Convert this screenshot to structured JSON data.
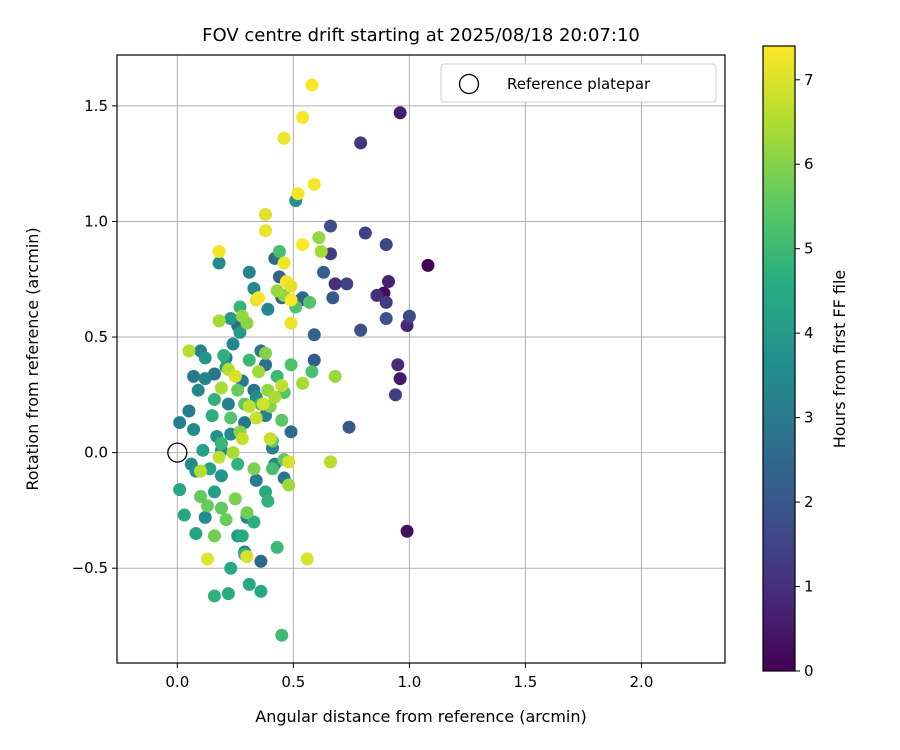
{
  "chart_data": {
    "type": "scatter",
    "title": "FOV centre drift starting at 2025/08/18 20:07:10",
    "xlabel": "Angular distance from reference (arcmin)",
    "ylabel": "Rotation from reference (arcmin)",
    "xlim": [
      -0.26,
      2.36
    ],
    "ylim": [
      -0.91,
      1.72
    ],
    "xticks": [
      0.0,
      0.5,
      1.0,
      1.5,
      2.0
    ],
    "xtick_labels": [
      "0.0",
      "0.5",
      "1.0",
      "1.5",
      "2.0"
    ],
    "yticks": [
      -0.5,
      0.0,
      0.5,
      1.0,
      1.5
    ],
    "ytick_labels": [
      "−0.5",
      "0.0",
      "0.5",
      "1.0",
      "1.5"
    ],
    "grid": true,
    "legend": {
      "placement": "top-right",
      "entries": [
        "Reference platepar"
      ]
    },
    "reference_point": {
      "x": 0.0,
      "y": 0.0,
      "label": "Reference platepar"
    },
    "colorbar": {
      "label": "Hours from first FF file",
      "range": [
        0,
        7.4
      ],
      "ticks": [
        0,
        1,
        2,
        3,
        4,
        5,
        6,
        7
      ],
      "tick_labels": [
        "0",
        "1",
        "2",
        "3",
        "4",
        "5",
        "6",
        "7"
      ],
      "colormap": "viridis"
    },
    "points": [
      [
        1.08,
        0.81,
        0.0
      ],
      [
        0.99,
        -0.34,
        0.3
      ],
      [
        0.96,
        1.47,
        0.6
      ],
      [
        0.89,
        0.69,
        0.2
      ],
      [
        0.96,
        0.32,
        0.5
      ],
      [
        0.91,
        0.74,
        0.7
      ],
      [
        0.99,
        0.55,
        0.8
      ],
      [
        0.95,
        0.38,
        0.9
      ],
      [
        0.86,
        0.68,
        1.0
      ],
      [
        0.79,
        1.34,
        1.2
      ],
      [
        0.9,
        0.65,
        1.3
      ],
      [
        0.94,
        0.25,
        1.4
      ],
      [
        0.81,
        0.95,
        1.5
      ],
      [
        0.9,
        0.9,
        1.6
      ],
      [
        1.0,
        0.59,
        1.7
      ],
      [
        0.68,
        0.73,
        1.0
      ],
      [
        0.66,
        0.86,
        1.3
      ],
      [
        0.73,
        0.73,
        1.5
      ],
      [
        0.66,
        0.98,
        1.8
      ],
      [
        0.79,
        0.53,
        1.9
      ],
      [
        0.9,
        0.58,
        1.9
      ],
      [
        0.74,
        0.11,
        2.0
      ],
      [
        0.67,
        0.67,
        2.1
      ],
      [
        0.59,
        0.4,
        2.2
      ],
      [
        0.63,
        0.78,
        2.3
      ],
      [
        0.53,
        0.66,
        2.2
      ],
      [
        0.59,
        0.51,
        2.4
      ],
      [
        0.54,
        0.67,
        2.5
      ],
      [
        0.49,
        0.09,
        2.6
      ],
      [
        0.45,
        0.67,
        2.5
      ],
      [
        0.42,
        0.84,
        2.6
      ],
      [
        0.44,
        0.76,
        2.4
      ],
      [
        0.36,
        -0.47,
        2.5
      ],
      [
        0.38,
        0.38,
        2.7
      ],
      [
        0.33,
        0.27,
        2.8
      ],
      [
        0.26,
        0.55,
        2.6
      ],
      [
        0.36,
        0.44,
        2.9
      ],
      [
        0.21,
        0.41,
        2.7
      ],
      [
        0.16,
        0.34,
        2.9
      ],
      [
        0.29,
        0.13,
        3.0
      ],
      [
        0.34,
        -0.12,
        3.1
      ],
      [
        0.41,
        0.02,
        3.2
      ],
      [
        0.46,
        -0.11,
        3.0
      ],
      [
        0.38,
        0.16,
        3.3
      ],
      [
        0.28,
        0.31,
        3.1
      ],
      [
        0.22,
        0.21,
        3.2
      ],
      [
        0.31,
        0.78,
        3.3
      ],
      [
        0.24,
        0.47,
        3.4
      ],
      [
        0.33,
        0.71,
        3.5
      ],
      [
        0.42,
        -0.05,
        3.4
      ],
      [
        0.34,
        0.24,
        3.6
      ],
      [
        0.23,
        0.08,
        3.5
      ],
      [
        0.19,
        0.01,
        3.7
      ],
      [
        0.12,
        -0.28,
        3.6
      ],
      [
        0.1,
        0.44,
        3.3
      ],
      [
        0.09,
        0.27,
        3.4
      ],
      [
        0.12,
        0.32,
        3.3
      ],
      [
        0.06,
        -0.05,
        3.5
      ],
      [
        0.01,
        0.13,
        3.2
      ],
      [
        0.07,
        0.1,
        3.6
      ],
      [
        0.05,
        0.18,
        3.1
      ],
      [
        0.07,
        0.33,
        3.0
      ],
      [
        0.08,
        -0.08,
        3.8
      ],
      [
        0.18,
        0.82,
        3.5
      ],
      [
        0.29,
        -0.43,
        3.2
      ],
      [
        0.3,
        -0.28,
        3.3
      ],
      [
        0.39,
        0.62,
        3.4
      ],
      [
        0.51,
        1.09,
        3.8
      ],
      [
        0.12,
        0.41,
        3.9
      ],
      [
        0.17,
        0.07,
        3.8
      ],
      [
        0.19,
        -0.1,
        3.9
      ],
      [
        0.23,
        0.58,
        4.0
      ],
      [
        0.27,
        0.52,
        4.0
      ],
      [
        0.26,
        -0.36,
        4.1
      ],
      [
        0.21,
        0.37,
        4.1
      ],
      [
        0.16,
        -0.17,
        4.2
      ],
      [
        0.11,
        0.01,
        4.2
      ],
      [
        0.14,
        -0.07,
        4.3
      ],
      [
        0.08,
        -0.35,
        4.3
      ],
      [
        0.03,
        -0.27,
        4.4
      ],
      [
        0.01,
        -0.16,
        4.4
      ],
      [
        0.23,
        -0.5,
        4.5
      ],
      [
        0.31,
        -0.57,
        4.5
      ],
      [
        0.36,
        -0.6,
        4.4
      ],
      [
        0.22,
        -0.61,
        4.6
      ],
      [
        0.16,
        -0.62,
        4.8
      ],
      [
        0.28,
        -0.36,
        4.6
      ],
      [
        0.33,
        -0.3,
        4.7
      ],
      [
        0.29,
        -0.44,
        4.9
      ],
      [
        0.38,
        -0.17,
        4.6
      ],
      [
        0.39,
        -0.21,
        4.8
      ],
      [
        0.43,
        -0.41,
        5.0
      ],
      [
        0.45,
        -0.79,
        5.1
      ],
      [
        0.41,
        -0.07,
        5.2
      ],
      [
        0.26,
        -0.05,
        4.8
      ],
      [
        0.19,
        0.04,
        4.9
      ],
      [
        0.15,
        0.16,
        4.7
      ],
      [
        0.16,
        0.23,
        4.8
      ],
      [
        0.2,
        0.42,
        4.7
      ],
      [
        0.27,
        0.63,
        4.9
      ],
      [
        0.31,
        0.4,
        5.0
      ],
      [
        0.36,
        0.21,
        5.1
      ],
      [
        0.43,
        0.33,
        5.0
      ],
      [
        0.44,
        0.87,
        5.2
      ],
      [
        0.51,
        0.63,
        5.3
      ],
      [
        0.57,
        0.65,
        5.4
      ],
      [
        0.58,
        0.35,
        5.2
      ],
      [
        0.49,
        0.38,
        5.3
      ],
      [
        0.46,
        0.26,
        5.4
      ],
      [
        0.45,
        0.14,
        5.5
      ],
      [
        0.46,
        -0.03,
        5.5
      ],
      [
        0.41,
        0.05,
        5.6
      ],
      [
        0.29,
        0.21,
        5.5
      ],
      [
        0.26,
        0.27,
        5.7
      ],
      [
        0.23,
        0.15,
        5.4
      ],
      [
        0.19,
        -0.24,
        5.6
      ],
      [
        0.13,
        -0.23,
        5.7
      ],
      [
        0.1,
        -0.19,
        5.6
      ],
      [
        0.16,
        -0.36,
        5.8
      ],
      [
        0.21,
        -0.29,
        5.7
      ],
      [
        0.25,
        -0.2,
        5.9
      ],
      [
        0.3,
        -0.26,
        5.8
      ],
      [
        0.33,
        -0.07,
        5.9
      ],
      [
        0.4,
        0.2,
        6.0
      ],
      [
        0.38,
        0.43,
        6.0
      ],
      [
        0.3,
        0.56,
        6.1
      ],
      [
        0.28,
        0.59,
        6.2
      ],
      [
        0.27,
        0.09,
        6.1
      ],
      [
        0.39,
        0.27,
        6.2
      ],
      [
        0.48,
        -0.14,
        6.3
      ],
      [
        0.46,
        0.68,
        6.1
      ],
      [
        0.43,
        0.7,
        6.3
      ],
      [
        0.61,
        0.93,
        6.2
      ],
      [
        0.62,
        0.87,
        6.4
      ],
      [
        0.68,
        0.33,
        6.3
      ],
      [
        0.54,
        0.3,
        6.4
      ],
      [
        0.42,
        0.24,
        6.5
      ],
      [
        0.35,
        0.35,
        6.4
      ],
      [
        0.22,
        0.36,
        6.6
      ],
      [
        0.19,
        0.28,
        6.5
      ],
      [
        0.18,
        0.57,
        6.4
      ],
      [
        0.05,
        0.44,
        6.6
      ],
      [
        0.1,
        -0.08,
        6.6
      ],
      [
        0.18,
        -0.02,
        6.7
      ],
      [
        0.24,
        0.0,
        6.5
      ],
      [
        0.28,
        0.06,
        6.8
      ],
      [
        0.31,
        0.2,
        6.7
      ],
      [
        0.34,
        0.15,
        6.8
      ],
      [
        0.37,
        0.21,
        6.9
      ],
      [
        0.4,
        0.06,
        6.8
      ],
      [
        0.48,
        -0.04,
        6.9
      ],
      [
        0.45,
        0.29,
        6.7
      ],
      [
        0.56,
        -0.46,
        7.0
      ],
      [
        0.66,
        -0.04,
        6.6
      ],
      [
        0.3,
        -0.45,
        7.0
      ],
      [
        0.13,
        -0.46,
        7.1
      ],
      [
        0.25,
        0.33,
        7.0
      ],
      [
        0.34,
        0.66,
        7.1
      ],
      [
        0.38,
        0.96,
        7.2
      ],
      [
        0.38,
        1.03,
        7.1
      ],
      [
        0.46,
        1.36,
        7.2
      ],
      [
        0.52,
        1.12,
        7.3
      ],
      [
        0.54,
        1.45,
        7.3
      ],
      [
        0.58,
        1.59,
        7.4
      ],
      [
        0.59,
        1.16,
        7.3
      ],
      [
        0.54,
        0.9,
        7.4
      ],
      [
        0.46,
        0.82,
        7.2
      ],
      [
        0.47,
        0.74,
        7.3
      ],
      [
        0.49,
        0.66,
        7.4
      ],
      [
        0.35,
        0.67,
        7.3
      ],
      [
        0.49,
        0.56,
        7.2
      ],
      [
        0.18,
        0.87,
        7.3
      ],
      [
        0.49,
        0.72,
        7.1
      ]
    ]
  }
}
